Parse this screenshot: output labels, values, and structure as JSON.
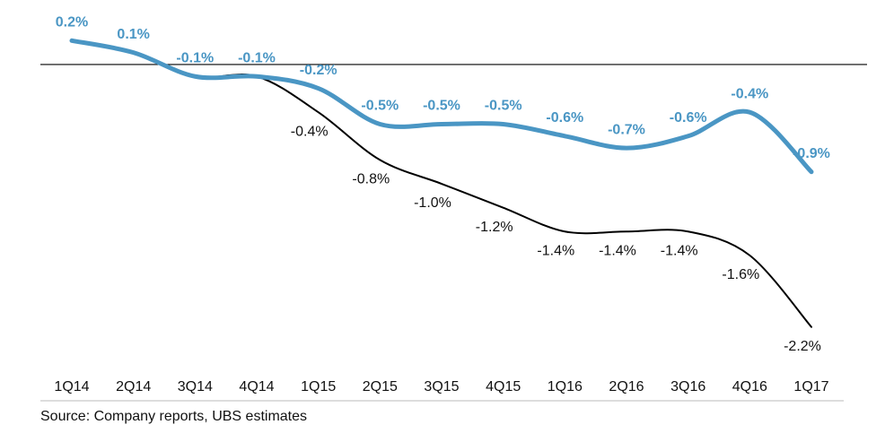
{
  "chart_data": {
    "type": "line",
    "categories": [
      "1Q14",
      "2Q14",
      "3Q14",
      "4Q14",
      "1Q15",
      "2Q15",
      "3Q15",
      "4Q15",
      "1Q16",
      "2Q16",
      "3Q16",
      "4Q16",
      "1Q17"
    ],
    "series": [
      {
        "color": "#4a96c4",
        "values": [
          0.2,
          0.1,
          -0.1,
          -0.1,
          -0.2,
          -0.5,
          -0.5,
          -0.5,
          -0.6,
          -0.7,
          -0.6,
          -0.4,
          -0.9
        ],
        "value_labels": [
          "0.2%",
          "0.1%",
          "-0.1%",
          "-0.1%",
          "-0.2%",
          "-0.5%",
          "-0.5%",
          "-0.5%",
          "-0.6%",
          "-0.7%",
          "-0.6%",
          "-0.4%",
          "-0.9%"
        ]
      },
      {
        "color": "#000000",
        "values": [
          0.2,
          0.1,
          -0.1,
          -0.1,
          -0.4,
          -0.8,
          -1.0,
          -1.2,
          -1.4,
          -1.4,
          -1.4,
          -1.6,
          -2.2
        ],
        "value_labels": [
          null,
          null,
          null,
          null,
          "-0.4%",
          "-0.8%",
          "-1.0%",
          "-1.2%",
          "-1.4%",
          "-1.4%",
          "-1.4%",
          "-1.6%",
          "-2.2%"
        ]
      }
    ],
    "ylim": [
      -2.45,
      0.3
    ],
    "source": "Source:  Company reports, UBS estimates"
  }
}
